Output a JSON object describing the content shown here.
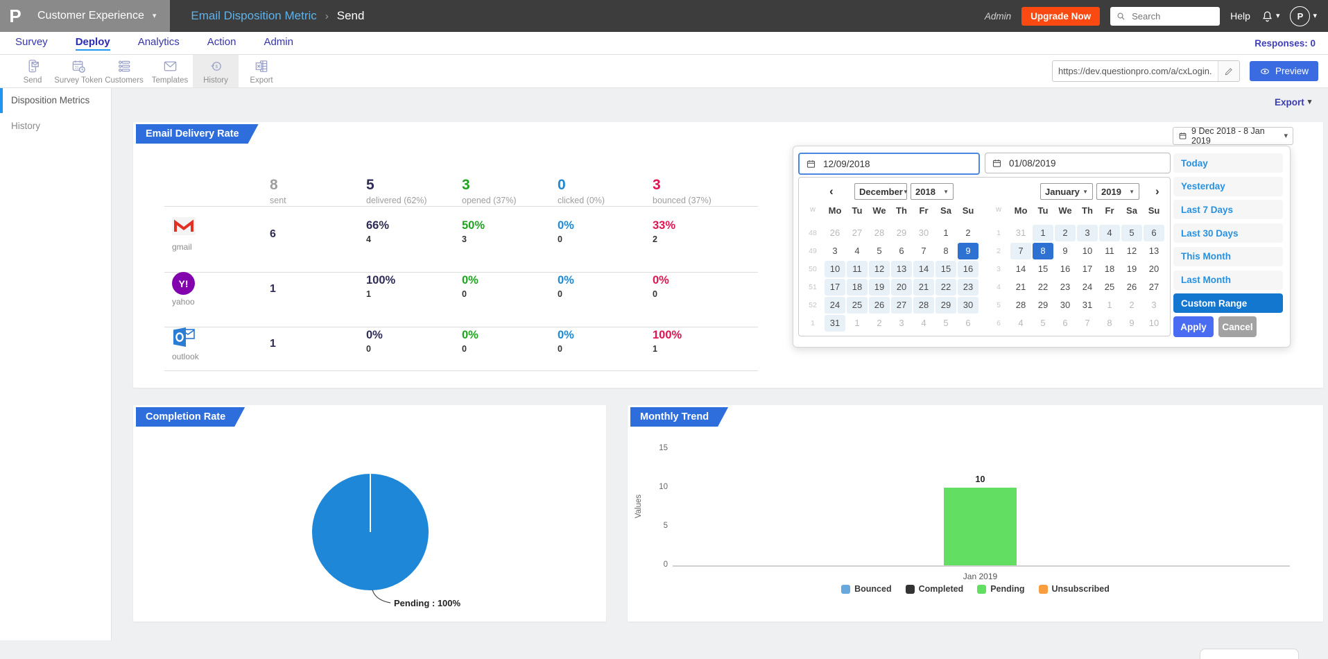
{
  "header": {
    "logo_letter": "P",
    "product": "Customer Experience",
    "breadcrumb_title": "Email Disposition Metric",
    "breadcrumb_separator": "›",
    "breadcrumb_page": "Send",
    "admin_label": "Admin",
    "upgrade_label": "Upgrade Now",
    "search_placeholder": "Search",
    "help_label": "Help",
    "avatar_initial": "P"
  },
  "nav": {
    "tabs": [
      {
        "label": "Survey",
        "active": false
      },
      {
        "label": "Deploy",
        "active": true
      },
      {
        "label": "Analytics",
        "active": false
      },
      {
        "label": "Action",
        "active": false
      },
      {
        "label": "Admin",
        "active": false
      }
    ],
    "responses_label": "Responses: 0"
  },
  "toolbar": {
    "buttons": [
      {
        "label": "Send",
        "icon": "send",
        "active": false
      },
      {
        "label": "Survey Token",
        "icon": "survey-token",
        "active": false
      },
      {
        "label": "Customers",
        "icon": "customers",
        "active": false
      },
      {
        "label": "Templates",
        "icon": "templates",
        "active": false
      },
      {
        "label": "History",
        "icon": "history",
        "active": true
      },
      {
        "label": "Export",
        "icon": "export",
        "active": false
      }
    ],
    "url_value": "https://dev.questionpro.com/a/cxLogin.d",
    "preview_label": "Preview"
  },
  "sidebar": {
    "items": [
      {
        "label": "Disposition Metrics",
        "active": true
      },
      {
        "label": "History",
        "active": false
      }
    ]
  },
  "main": {
    "export_label": "Export",
    "delivery": {
      "title": "Email Delivery Rate",
      "date_range_label": "9 Dec 2018 - 8 Jan 2019",
      "summary": [
        {
          "value": "8",
          "label": "sent",
          "color": "#9e9e9e"
        },
        {
          "value": "5",
          "label": "delivered (62%)",
          "color": "#2e2c55"
        },
        {
          "value": "3",
          "label": "opened (37%)",
          "color": "#1fa41f"
        },
        {
          "value": "0",
          "label": "clicked (0%)",
          "color": "#1e88d2"
        },
        {
          "value": "3",
          "label": "bounced (37%)",
          "color": "#e01450"
        }
      ],
      "providers": [
        {
          "name": "gmail",
          "sent": "6",
          "cells": [
            {
              "pct": "66%",
              "count": "4",
              "color": "#2e2c55"
            },
            {
              "pct": "50%",
              "count": "3",
              "color": "#1fa41f"
            },
            {
              "pct": "0%",
              "count": "0",
              "color": "#1e88d2"
            },
            {
              "pct": "33%",
              "count": "2",
              "color": "#e01450"
            }
          ]
        },
        {
          "name": "yahoo",
          "sent": "1",
          "cells": [
            {
              "pct": "100%",
              "count": "1",
              "color": "#2e2c55"
            },
            {
              "pct": "0%",
              "count": "0",
              "color": "#1fa41f"
            },
            {
              "pct": "0%",
              "count": "0",
              "color": "#1e88d2"
            },
            {
              "pct": "0%",
              "count": "0",
              "color": "#e01450"
            }
          ]
        },
        {
          "name": "outlook",
          "sent": "1",
          "cells": [
            {
              "pct": "0%",
              "count": "0",
              "color": "#2e2c55"
            },
            {
              "pct": "0%",
              "count": "0",
              "color": "#1fa41f"
            },
            {
              "pct": "0%",
              "count": "0",
              "color": "#1e88d2"
            },
            {
              "pct": "100%",
              "count": "1",
              "color": "#e01450"
            }
          ]
        }
      ]
    },
    "datepicker": {
      "start_value": "12/09/2018",
      "end_value": "01/08/2019",
      "week_col_header": "w",
      "dow": [
        "Mo",
        "Tu",
        "We",
        "Th",
        "Fr",
        "Sa",
        "Su"
      ],
      "months": [
        {
          "name": "December",
          "year": "2018",
          "nav": "prev",
          "weeks": [
            {
              "w": "48",
              "days": [
                [
                  "26",
                  "o"
                ],
                [
                  "27",
                  "o"
                ],
                [
                  "28",
                  "o"
                ],
                [
                  "29",
                  "o"
                ],
                [
                  "30",
                  "o"
                ],
                [
                  "1",
                  "n"
                ],
                [
                  "2",
                  "n"
                ]
              ]
            },
            {
              "w": "49",
              "days": [
                [
                  "3",
                  "n"
                ],
                [
                  "4",
                  "n"
                ],
                [
                  "5",
                  "n"
                ],
                [
                  "6",
                  "n"
                ],
                [
                  "7",
                  "n"
                ],
                [
                  "8",
                  "n"
                ],
                [
                  "9",
                  "s"
                ]
              ]
            },
            {
              "w": "50",
              "days": [
                [
                  "10",
                  "r"
                ],
                [
                  "11",
                  "r"
                ],
                [
                  "12",
                  "r"
                ],
                [
                  "13",
                  "r"
                ],
                [
                  "14",
                  "r"
                ],
                [
                  "15",
                  "r"
                ],
                [
                  "16",
                  "r"
                ]
              ]
            },
            {
              "w": "51",
              "days": [
                [
                  "17",
                  "r"
                ],
                [
                  "18",
                  "r"
                ],
                [
                  "19",
                  "r"
                ],
                [
                  "20",
                  "r"
                ],
                [
                  "21",
                  "r"
                ],
                [
                  "22",
                  "r"
                ],
                [
                  "23",
                  "r"
                ]
              ]
            },
            {
              "w": "52",
              "days": [
                [
                  "24",
                  "r"
                ],
                [
                  "25",
                  "r"
                ],
                [
                  "26",
                  "r"
                ],
                [
                  "27",
                  "r"
                ],
                [
                  "28",
                  "r"
                ],
                [
                  "29",
                  "r"
                ],
                [
                  "30",
                  "r"
                ]
              ]
            },
            {
              "w": "1",
              "days": [
                [
                  "31",
                  "r"
                ],
                [
                  "1",
                  "o"
                ],
                [
                  "2",
                  "o"
                ],
                [
                  "3",
                  "o"
                ],
                [
                  "4",
                  "o"
                ],
                [
                  "5",
                  "o"
                ],
                [
                  "6",
                  "o"
                ]
              ]
            }
          ]
        },
        {
          "name": "January",
          "year": "2019",
          "nav": "next",
          "weeks": [
            {
              "w": "1",
              "days": [
                [
                  "31",
                  "o"
                ],
                [
                  "1",
                  "r"
                ],
                [
                  "2",
                  "r"
                ],
                [
                  "3",
                  "r"
                ],
                [
                  "4",
                  "r"
                ],
                [
                  "5",
                  "r"
                ],
                [
                  "6",
                  "r"
                ]
              ]
            },
            {
              "w": "2",
              "days": [
                [
                  "7",
                  "r"
                ],
                [
                  "8",
                  "s"
                ],
                [
                  "9",
                  "n"
                ],
                [
                  "10",
                  "n"
                ],
                [
                  "11",
                  "n"
                ],
                [
                  "12",
                  "n"
                ],
                [
                  "13",
                  "n"
                ]
              ]
            },
            {
              "w": "3",
              "days": [
                [
                  "14",
                  "n"
                ],
                [
                  "15",
                  "n"
                ],
                [
                  "16",
                  "n"
                ],
                [
                  "17",
                  "n"
                ],
                [
                  "18",
                  "n"
                ],
                [
                  "19",
                  "n"
                ],
                [
                  "20",
                  "n"
                ]
              ]
            },
            {
              "w": "4",
              "days": [
                [
                  "21",
                  "n"
                ],
                [
                  "22",
                  "n"
                ],
                [
                  "23",
                  "n"
                ],
                [
                  "24",
                  "n"
                ],
                [
                  "25",
                  "n"
                ],
                [
                  "26",
                  "n"
                ],
                [
                  "27",
                  "n"
                ]
              ]
            },
            {
              "w": "5",
              "days": [
                [
                  "28",
                  "n"
                ],
                [
                  "29",
                  "n"
                ],
                [
                  "30",
                  "n"
                ],
                [
                  "31",
                  "n"
                ],
                [
                  "1",
                  "o"
                ],
                [
                  "2",
                  "o"
                ],
                [
                  "3",
                  "o"
                ]
              ]
            },
            {
              "w": "6",
              "days": [
                [
                  "4",
                  "o"
                ],
                [
                  "5",
                  "o"
                ],
                [
                  "6",
                  "o"
                ],
                [
                  "7",
                  "o"
                ],
                [
                  "8",
                  "o"
                ],
                [
                  "9",
                  "o"
                ],
                [
                  "10",
                  "o"
                ]
              ]
            }
          ]
        }
      ],
      "quick_options": [
        {
          "label": "Today",
          "active": false
        },
        {
          "label": "Yesterday",
          "active": false
        },
        {
          "label": "Last 7 Days",
          "active": false
        },
        {
          "label": "Last 30 Days",
          "active": false
        },
        {
          "label": "This Month",
          "active": false
        },
        {
          "label": "Last Month",
          "active": false
        },
        {
          "label": "Custom Range",
          "active": true
        }
      ],
      "apply_label": "Apply",
      "cancel_label": "Cancel"
    },
    "completion": {
      "title": "Completion Rate",
      "slice_label": "Pending : 100%",
      "pie_color": "#1e87d8"
    },
    "monthly": {
      "title": "Monthly Trend",
      "ylabel": "Values",
      "y_ticks": [
        0,
        5,
        10,
        15
      ],
      "ymax": 15,
      "bar_value": 10,
      "bar_value_label": "10",
      "bar_color": "#62df62",
      "x_label": "Jan 2019",
      "legend": [
        {
          "label": "Bounced",
          "color": "#67a9dc"
        },
        {
          "label": "Completed",
          "color": "#333333"
        },
        {
          "label": "Pending",
          "color": "#62df62"
        },
        {
          "label": "Unsubscribed",
          "color": "#f99d3e"
        }
      ]
    }
  },
  "chart_data": [
    {
      "type": "pie",
      "title": "Completion Rate",
      "labels": [
        "Pending"
      ],
      "values": [
        100
      ],
      "colors": [
        "#1e87d8"
      ],
      "annotation": "Pending : 100%"
    },
    {
      "type": "bar",
      "title": "Monthly Trend",
      "categories": [
        "Jan 2019"
      ],
      "series": [
        {
          "name": "Bounced",
          "values": [
            0
          ]
        },
        {
          "name": "Completed",
          "values": [
            0
          ]
        },
        {
          "name": "Pending",
          "values": [
            10
          ]
        },
        {
          "name": "Unsubscribed",
          "values": [
            0
          ]
        }
      ],
      "xlabel": "",
      "ylabel": "Values",
      "ylim": [
        0,
        15
      ],
      "grid": false,
      "legend_position": "bottom"
    }
  ]
}
